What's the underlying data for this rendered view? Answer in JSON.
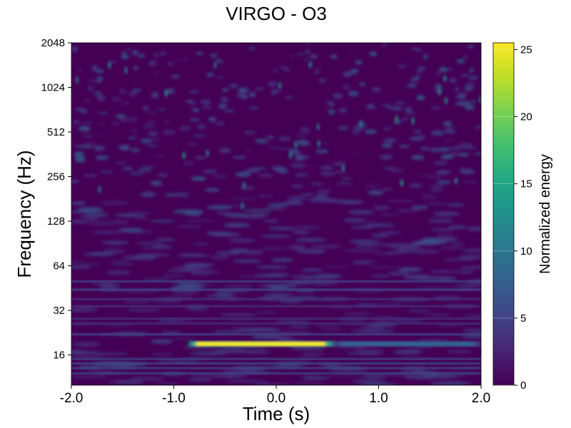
{
  "chart_data": {
    "type": "heatmap",
    "title": "VIRGO - O3",
    "xlabel": "Time (s)",
    "ylabel": "Frequency (Hz)",
    "x_ticks": [
      "-2.0",
      "-1.0",
      "0.0",
      "1.0",
      "2.0"
    ],
    "xlim": [
      -2.0,
      2.0
    ],
    "y_ticks": [
      "16",
      "32",
      "64",
      "128",
      "256",
      "512",
      "1024",
      "2048"
    ],
    "y_tick_values": [
      16,
      32,
      64,
      128,
      256,
      512,
      1024,
      2048
    ],
    "ylim": [
      10,
      2048
    ],
    "yscale": "log2",
    "grid": false,
    "colormap": "viridis",
    "colorbar": {
      "label": "Normalized energy",
      "ticks": [
        "0",
        "5",
        "10",
        "15",
        "20",
        "25"
      ],
      "tick_values": [
        0,
        5,
        10,
        15,
        20,
        25
      ],
      "range": [
        0,
        25.5
      ]
    },
    "features": [
      {
        "description": "bright chirp-like horizontal band",
        "t_start": -0.85,
        "t_end": 0.55,
        "frequency_hz": 19,
        "peak_energy": 25
      },
      {
        "description": "weaker tail of band",
        "t_start": 0.55,
        "t_end": 2.0,
        "frequency_hz": 19,
        "peak_energy": 8
      }
    ]
  }
}
